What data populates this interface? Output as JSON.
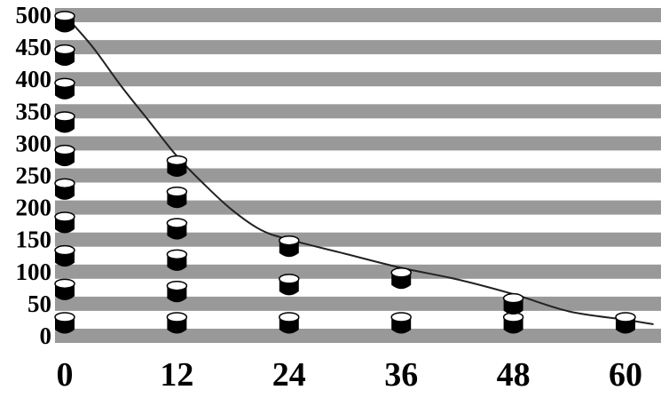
{
  "chart_data": {
    "type": "line",
    "title": "",
    "xlabel": "",
    "ylabel": "",
    "x_ticks": [
      "0",
      "12",
      "24",
      "36",
      "48",
      "60"
    ],
    "y_ticks": [
      "0",
      "50",
      "100",
      "150",
      "200",
      "250",
      "300",
      "350",
      "400",
      "450",
      "500"
    ],
    "xlim": [
      0,
      63
    ],
    "ylim": [
      0,
      500
    ],
    "grid": "horizontal gray bands",
    "legend": "none",
    "columns": [
      {
        "x": 0,
        "stack_top": 500
      },
      {
        "x": 12,
        "stack_top": 275
      },
      {
        "x": 24,
        "stack_top": 150
      },
      {
        "x": 36,
        "stack_top": 100
      },
      {
        "x": 48,
        "stack_top": 60
      },
      {
        "x": 60,
        "stack_top": 25
      }
    ],
    "series": [
      {
        "x": [
          0,
          3,
          6,
          9,
          12,
          15,
          18,
          21,
          24,
          30,
          36,
          42,
          48,
          54,
          60,
          63
        ],
        "values": [
          500,
          450,
          390,
          335,
          280,
          235,
          195,
          165,
          150,
          128,
          106,
          88,
          65,
          38,
          25,
          18
        ]
      }
    ],
    "colors": {
      "band": "#999999",
      "marker": "#000000",
      "line": "#222222"
    }
  }
}
